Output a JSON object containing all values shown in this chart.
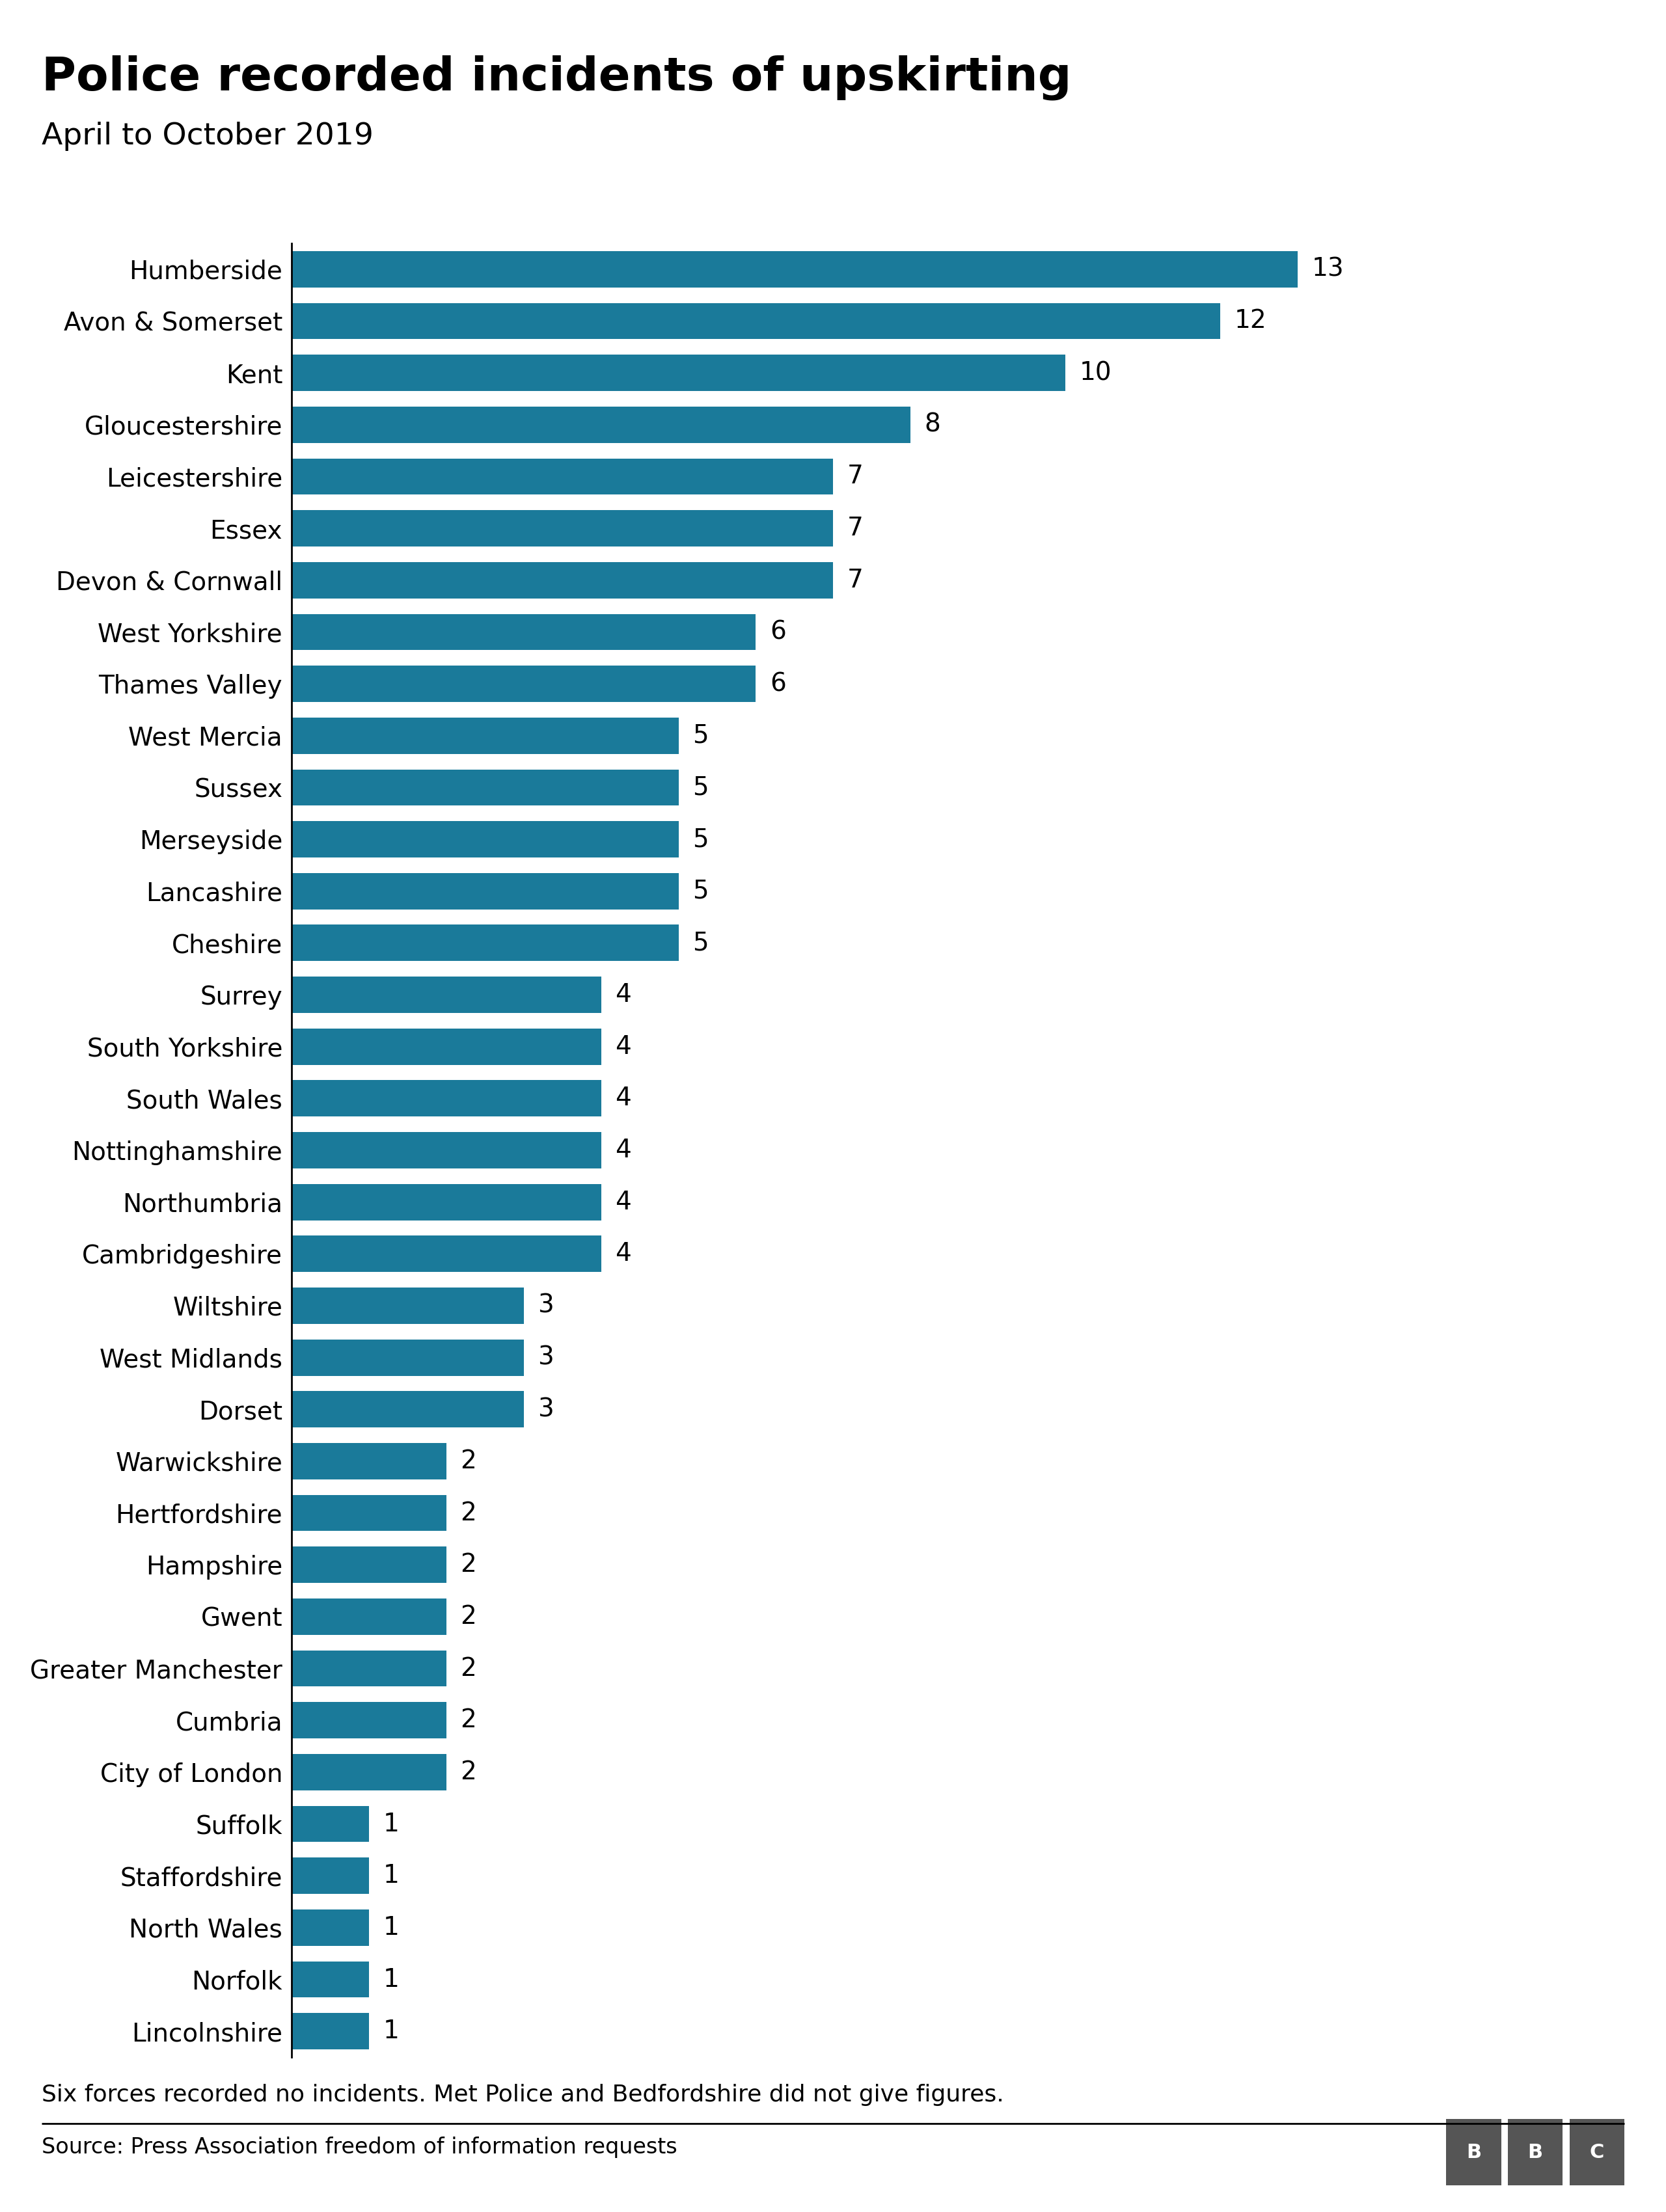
{
  "title": "Police recorded incidents of upskirting",
  "subtitle": "April to October 2019",
  "categories": [
    "Humberside",
    "Avon & Somerset",
    "Kent",
    "Gloucestershire",
    "Leicestershire",
    "Essex",
    "Devon & Cornwall",
    "West Yorkshire",
    "Thames Valley",
    "West Mercia",
    "Sussex",
    "Merseyside",
    "Lancashire",
    "Cheshire",
    "Surrey",
    "South Yorkshire",
    "South Wales",
    "Nottinghamshire",
    "Northumbria",
    "Cambridgeshire",
    "Wiltshire",
    "West Midlands",
    "Dorset",
    "Warwickshire",
    "Hertfordshire",
    "Hampshire",
    "Gwent",
    "Greater Manchester",
    "Cumbria",
    "City of London",
    "Suffolk",
    "Staffordshire",
    "North Wales",
    "Norfolk",
    "Lincolnshire"
  ],
  "values": [
    13,
    12,
    10,
    8,
    7,
    7,
    7,
    6,
    6,
    5,
    5,
    5,
    5,
    5,
    4,
    4,
    4,
    4,
    4,
    4,
    3,
    3,
    3,
    2,
    2,
    2,
    2,
    2,
    2,
    2,
    1,
    1,
    1,
    1,
    1
  ],
  "bar_color": "#1a7a9a",
  "background_color": "#ffffff",
  "title_fontsize": 52,
  "subtitle_fontsize": 34,
  "label_fontsize": 28,
  "value_fontsize": 28,
  "note_fontsize": 26,
  "source_fontsize": 24,
  "footnote": "Six forces recorded no incidents. Met Police and Bedfordshire did not give figures.",
  "source": "Source: Press Association freedom of information requests",
  "bbc_logo_color": "#555555"
}
